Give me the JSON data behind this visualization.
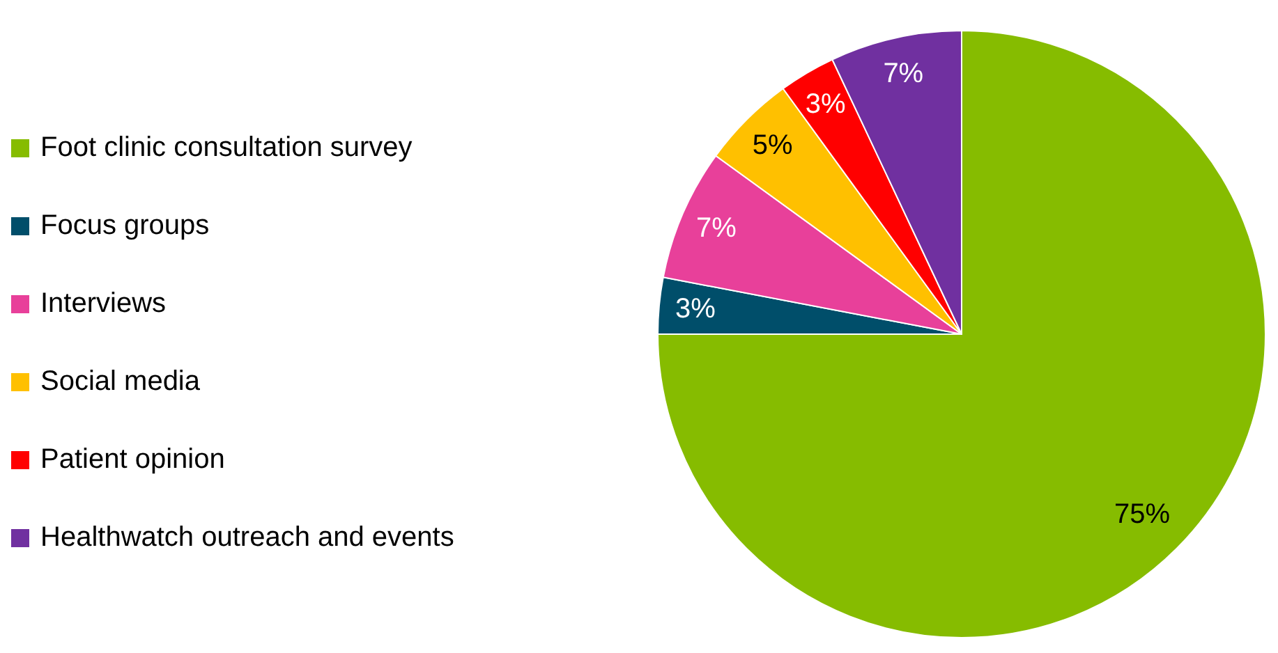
{
  "chart_data": {
    "type": "pie",
    "categories": [
      "Foot clinic consultation survey",
      "Focus groups",
      "Interviews",
      "Social media",
      "Patient opinion",
      "Healthwatch outreach and events"
    ],
    "values": [
      75,
      3,
      7,
      5,
      3,
      7
    ],
    "colors": [
      "#86bc00",
      "#004e6a",
      "#e8409a",
      "#ffc000",
      "#ff0000",
      "#7030a0"
    ],
    "value_labels": [
      "75%",
      "3%",
      "7%",
      "5%",
      "3%",
      "7%"
    ],
    "legend": "left"
  }
}
